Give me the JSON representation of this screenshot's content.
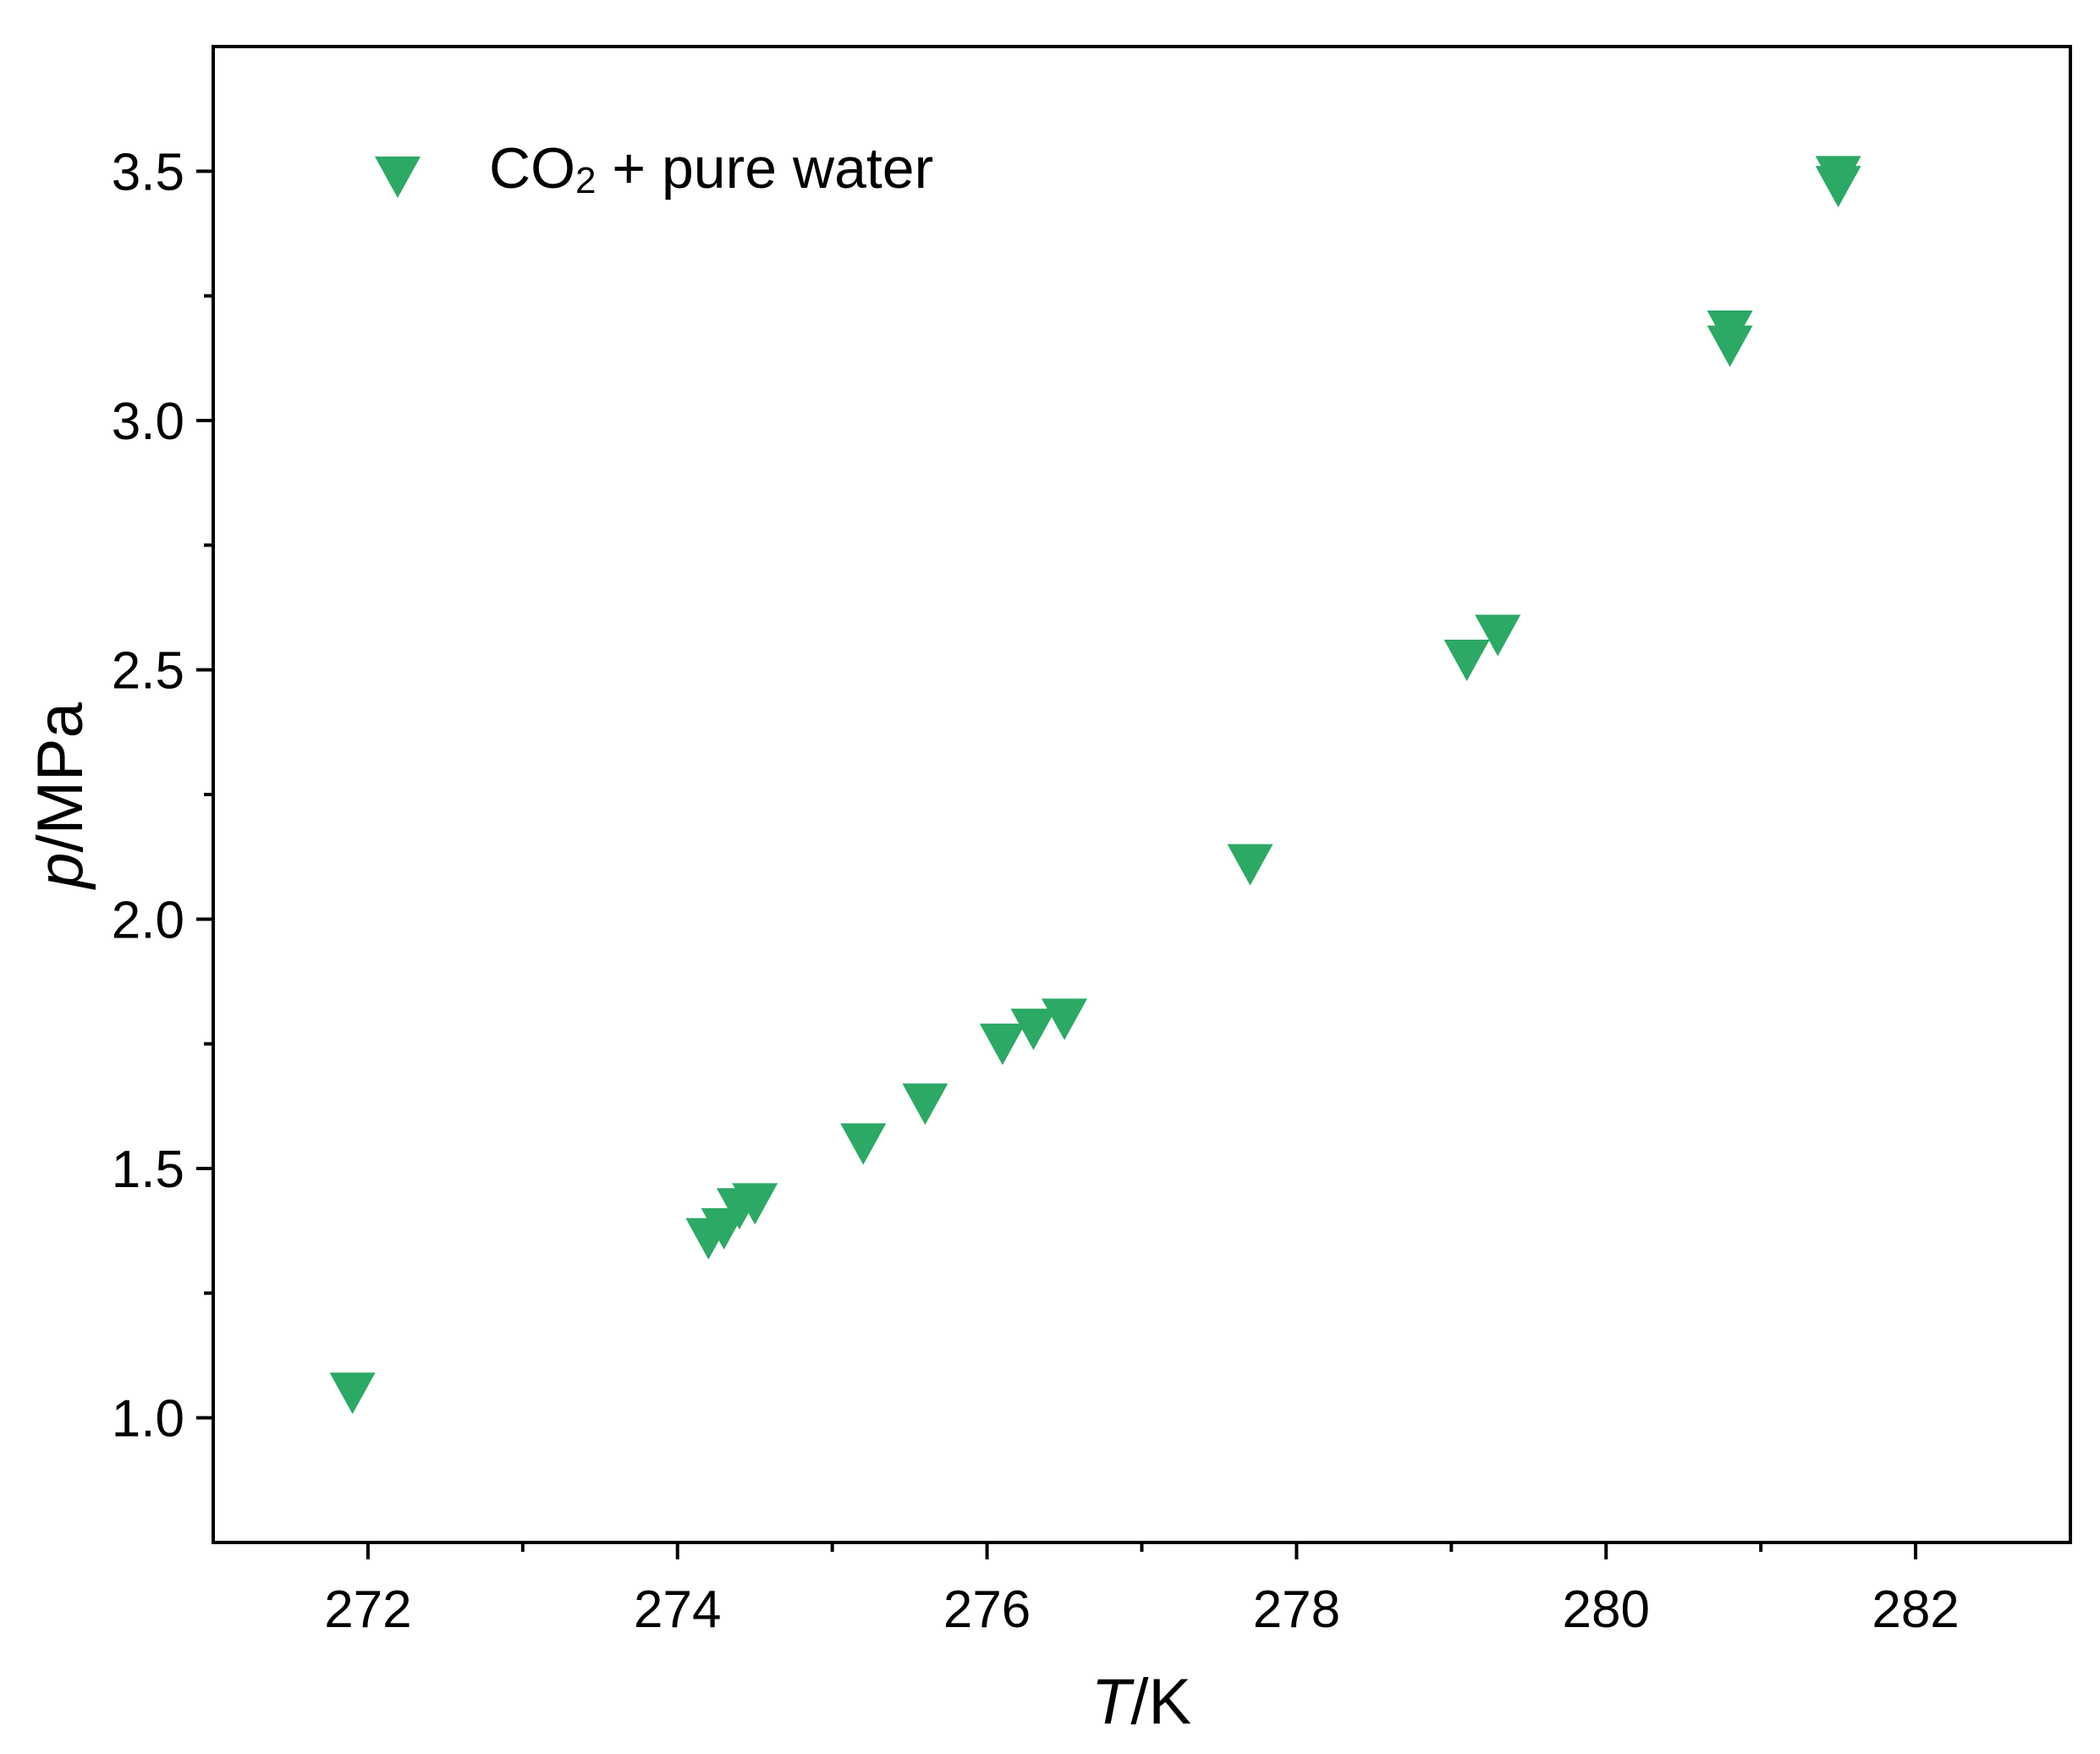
{
  "chart_data": {
    "type": "scatter",
    "xlabel_var": "T",
    "xlabel_unit": "/K",
    "ylabel_var": "p",
    "ylabel_unit": "/MPa",
    "xlim": [
      271.0,
      283.0
    ],
    "ylim": [
      0.75,
      3.75
    ],
    "x_ticks": [
      272,
      274,
      276,
      278,
      280,
      282
    ],
    "x_minor_ticks": [
      273,
      275,
      277,
      279,
      281
    ],
    "y_ticks": [
      1.0,
      1.5,
      2.0,
      2.5,
      3.0,
      3.5
    ],
    "y_tick_labels": [
      "1.0",
      "1.5",
      "2.0",
      "2.5",
      "3.0",
      "3.5"
    ],
    "y_minor_ticks": [
      1.25,
      1.75,
      2.25,
      2.75,
      3.25
    ],
    "grid": false,
    "legend_position": "top-left",
    "series": [
      {
        "name": "CO2 + pure water",
        "name_parts": {
          "prefix": "CO",
          "subscript": "2",
          "suffix": " + pure water"
        },
        "marker": "triangle-down",
        "color": "#2ca965",
        "x": [
          271.9,
          274.2,
          274.3,
          274.4,
          274.5,
          275.2,
          275.6,
          276.1,
          276.3,
          276.5,
          277.7,
          279.1,
          279.3,
          280.8,
          280.8,
          281.5,
          281.5
        ],
        "y": [
          1.06,
          1.37,
          1.39,
          1.43,
          1.44,
          1.56,
          1.64,
          1.76,
          1.79,
          1.81,
          2.12,
          2.53,
          2.58,
          3.16,
          3.19,
          3.48,
          3.5
        ]
      }
    ]
  }
}
